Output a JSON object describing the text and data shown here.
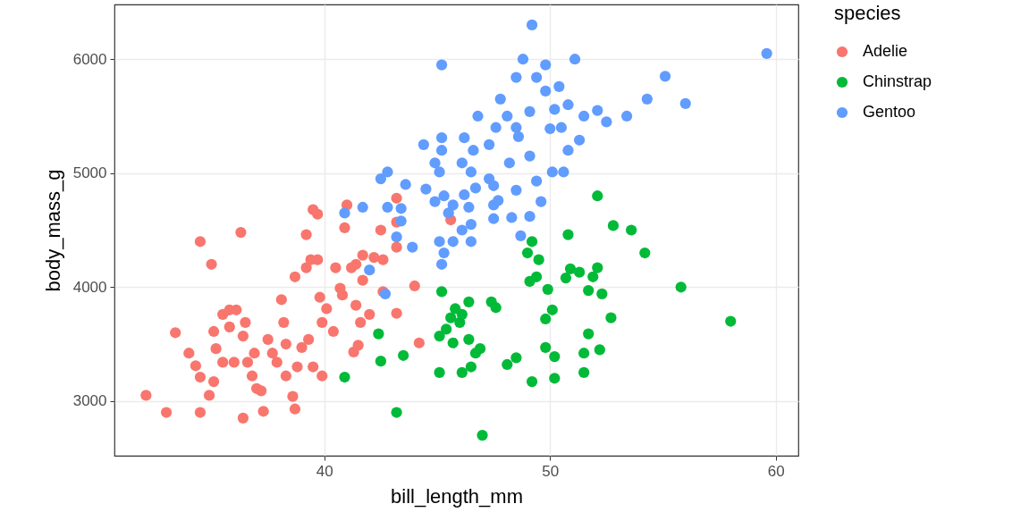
{
  "chart_data": {
    "type": "scatter",
    "xlabel": "bill_length_mm",
    "ylabel": "body_mass_g",
    "legend_title": "species",
    "xlim": [
      30.7,
      61.0
    ],
    "ylim": [
      2520,
      6480
    ],
    "xticks": [
      40,
      50,
      60
    ],
    "yticks": [
      3000,
      4000,
      5000,
      6000
    ],
    "grid": true,
    "legend": "right",
    "marker": "circle",
    "series": [
      {
        "name": "Adelie",
        "color": "#f8766d",
        "x": [
          32.1,
          33.0,
          34.5,
          35.0,
          33.4,
          34.0,
          34.3,
          34.5,
          34.5,
          34.9,
          35.1,
          35.5,
          35.2,
          35.1,
          35.5,
          35.8,
          35.8,
          36.1,
          36.3,
          36.5,
          36.4,
          36.6,
          36.8,
          37.0,
          37.2,
          37.3,
          36.4,
          36.0,
          36.9,
          37.5,
          37.7,
          37.9,
          38.2,
          38.3,
          38.3,
          38.7,
          38.6,
          38.8,
          39.0,
          39.3,
          39.5,
          39.7,
          39.2,
          39.4,
          39.2,
          39.7,
          39.8,
          39.9,
          40.1,
          40.4,
          40.5,
          40.7,
          40.8,
          41.2,
          41.4,
          40.9,
          41.0,
          41.4,
          41.6,
          41.7,
          41.7,
          42.2,
          42.5,
          43.2,
          43.2,
          42.6,
          42.6,
          43.2,
          44.0,
          44.2,
          42.0,
          39.5,
          39.9,
          41.3,
          41.5,
          38.7,
          38.1,
          43.2,
          45.6
        ],
        "values": [
          3050,
          2900,
          4400,
          4200,
          3600,
          3420,
          3310,
          3210,
          2900,
          3050,
          3170,
          3340,
          3460,
          3610,
          3760,
          3800,
          3650,
          3800,
          4480,
          3690,
          3570,
          3340,
          3220,
          3110,
          3090,
          2910,
          2850,
          3340,
          3420,
          3540,
          3420,
          3340,
          3690,
          3500,
          3220,
          2930,
          3040,
          3300,
          3470,
          3540,
          4680,
          4640,
          4460,
          4240,
          4170,
          4240,
          3910,
          3690,
          3810,
          3610,
          4170,
          3990,
          3930,
          4170,
          4200,
          4520,
          4720,
          3840,
          3690,
          4060,
          4280,
          4260,
          4500,
          4570,
          4350,
          4240,
          3960,
          3770,
          4010,
          3510,
          3760,
          3300,
          3220,
          3430,
          3490,
          4090,
          3890,
          4780,
          4590
        ]
      },
      {
        "name": "Chinstrap",
        "color": "#00ba38",
        "x": [
          40.9,
          42.4,
          42.5,
          43.2,
          43.5,
          45.2,
          45.1,
          45.1,
          45.4,
          45.6,
          45.7,
          45.8,
          46.0,
          46.1,
          46.4,
          46.4,
          46.5,
          46.7,
          46.9,
          47.4,
          47.6,
          48.1,
          48.5,
          49.1,
          49.2,
          49.4,
          49.5,
          49.8,
          50.1,
          49.9,
          49.8,
          50.2,
          50.7,
          50.9,
          51.3,
          51.7,
          51.9,
          52.1,
          52.3,
          51.5,
          51.7,
          52.7,
          52.1,
          52.8,
          53.6,
          54.2,
          55.8,
          58.0,
          50.8,
          49.2,
          49.0,
          50.2,
          46.1,
          51.5,
          52.2,
          47.0
        ],
        "values": [
          3210,
          3590,
          3350,
          2900,
          3400,
          3960,
          3570,
          3250,
          3630,
          3730,
          3510,
          3810,
          3690,
          3760,
          3870,
          3540,
          3300,
          3420,
          3460,
          3870,
          3820,
          3320,
          3380,
          4050,
          3170,
          4090,
          4240,
          3720,
          3800,
          3980,
          3470,
          3390,
          4080,
          4160,
          4130,
          3970,
          4090,
          4170,
          3940,
          3420,
          3590,
          3730,
          4800,
          4540,
          4500,
          4300,
          4000,
          3700,
          4460,
          4400,
          4300,
          3200,
          3250,
          3250,
          3450,
          2700
        ]
      },
      {
        "name": "Gentoo",
        "color": "#619cff",
        "x": [
          49.2,
          45.2,
          48.8,
          49.8,
          51.1,
          59.6,
          55.1,
          54.3,
          56.0,
          48.5,
          49.4,
          49.8,
          50.4,
          47.8,
          46.8,
          48.1,
          49.1,
          50.2,
          50.8,
          51.5,
          52.1,
          53.4,
          52.5,
          47.6,
          48.5,
          50.0,
          50.5,
          48.6,
          51.3,
          50.8,
          47.3,
          46.2,
          45.2,
          44.4,
          45.2,
          46.6,
          49.1,
          48.2,
          44.9,
          46.1,
          45.1,
          46.5,
          50.1,
          50.6,
          42.8,
          42.5,
          43.6,
          44.5,
          47.3,
          47.5,
          49.4,
          46.7,
          48.5,
          45.3,
          46.2,
          44.9,
          45.7,
          46.4,
          47.5,
          47.7,
          49.6,
          41.7,
          42.8,
          43.4,
          43.4,
          40.9,
          45.5,
          47.5,
          48.3,
          49.1,
          46.5,
          46.1,
          48.7,
          43.2,
          43.9,
          45.1,
          45.7,
          46.5,
          45.3,
          45.2,
          42.0,
          42.7
        ],
        "values": [
          6300,
          5950,
          6000,
          5950,
          6000,
          6050,
          5850,
          5650,
          5610,
          5840,
          5840,
          5720,
          5760,
          5650,
          5500,
          5500,
          5540,
          5560,
          5600,
          5500,
          5550,
          5500,
          5450,
          5400,
          5400,
          5390,
          5400,
          5320,
          5290,
          5200,
          5250,
          5310,
          5310,
          5250,
          5200,
          5200,
          5150,
          5090,
          5090,
          5090,
          5010,
          5010,
          5010,
          5010,
          5010,
          4950,
          4900,
          4860,
          4950,
          4890,
          4930,
          4870,
          4850,
          4800,
          4810,
          4750,
          4720,
          4700,
          4720,
          4760,
          4750,
          4700,
          4700,
          4690,
          4580,
          4650,
          4650,
          4600,
          4610,
          4620,
          4550,
          4500,
          4450,
          4440,
          4350,
          4400,
          4400,
          4400,
          4300,
          4200,
          4150,
          3940
        ]
      }
    ]
  }
}
